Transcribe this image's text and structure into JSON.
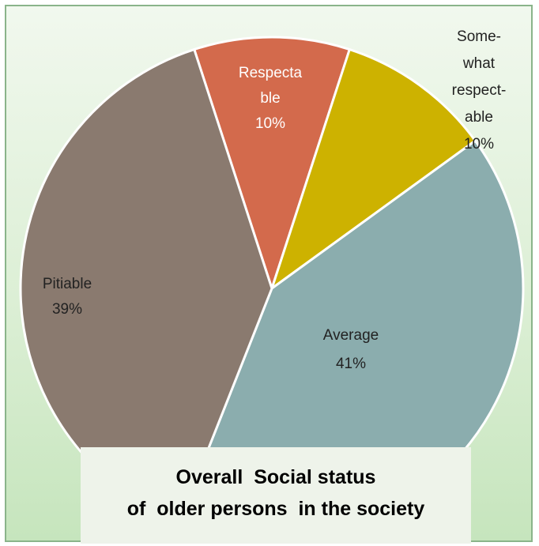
{
  "chart_data": {
    "type": "pie",
    "title_lines": [
      "Overall  Social status",
      "of  older persons  in the society"
    ],
    "slices": [
      {
        "label_lines": [
          "Respecta",
          "ble",
          "10%"
        ],
        "value": 10,
        "color": "#d36a4c"
      },
      {
        "label_lines": [
          "Some-",
          "what",
          "respect-",
          "able",
          "10%"
        ],
        "value": 10,
        "color": "#cdb200"
      },
      {
        "label_lines": [
          "Average",
          "41%"
        ],
        "value": 41,
        "color": "#8badae"
      },
      {
        "label_lines": [
          "Pitiable",
          "39%"
        ],
        "value": 39,
        "color": "#8a7a6f"
      }
    ]
  }
}
